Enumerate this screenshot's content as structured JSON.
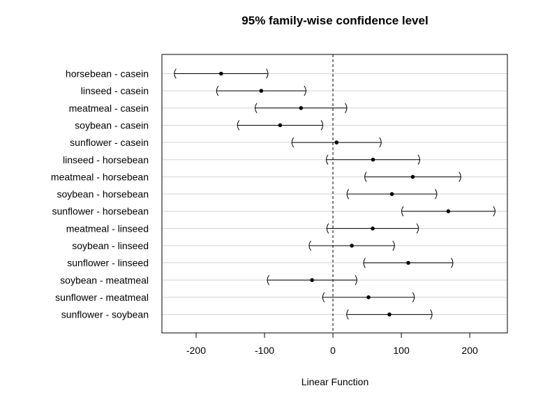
{
  "chart_data": {
    "type": "interval",
    "title": "95% family-wise confidence level",
    "xlabel": "Linear Function",
    "ylabel": "",
    "xlim": [
      -250,
      255
    ],
    "xticks": [
      -200,
      -100,
      0,
      100,
      200
    ],
    "reference_line": 0,
    "grid": "horizontal",
    "comparisons": [
      {
        "label": "horsebean - casein",
        "estimate": -163.4,
        "lwr": -232.3,
        "upr": -94.4
      },
      {
        "label": "linseed - casein",
        "estimate": -104.8,
        "lwr": -170.6,
        "upr": -39.0
      },
      {
        "label": "meatmeal - casein",
        "estimate": -46.7,
        "lwr": -114.2,
        "upr": 20.8
      },
      {
        "label": "soybean - casein",
        "estimate": -77.2,
        "lwr": -140.1,
        "upr": -14.3
      },
      {
        "label": "sunflower - casein",
        "estimate": 5.3,
        "lwr": -60.5,
        "upr": 71.1
      },
      {
        "label": "linseed - horsebean",
        "estimate": 58.6,
        "lwr": -10.2,
        "upr": 127.4
      },
      {
        "label": "meatmeal - horsebean",
        "estimate": 116.7,
        "lwr": 46.0,
        "upr": 187.4
      },
      {
        "label": "soybean - horsebean",
        "estimate": 86.2,
        "lwr": 20.0,
        "upr": 152.4
      },
      {
        "label": "sunflower - horsebean",
        "estimate": 168.7,
        "lwr": 99.9,
        "upr": 237.5
      },
      {
        "label": "meatmeal - linseed",
        "estimate": 58.1,
        "lwr": -9.4,
        "upr": 125.5
      },
      {
        "label": "soybean - linseed",
        "estimate": 27.6,
        "lwr": -35.3,
        "upr": 90.5
      },
      {
        "label": "sunflower - linseed",
        "estimate": 110.1,
        "lwr": 44.3,
        "upr": 175.9
      },
      {
        "label": "soybean - meatmeal",
        "estimate": -30.5,
        "lwr": -96.4,
        "upr": 35.5
      },
      {
        "label": "sunflower - meatmeal",
        "estimate": 52.0,
        "lwr": -15.5,
        "upr": 119.5
      },
      {
        "label": "sunflower - soybean",
        "estimate": 82.5,
        "lwr": 19.6,
        "upr": 145.4
      }
    ]
  }
}
